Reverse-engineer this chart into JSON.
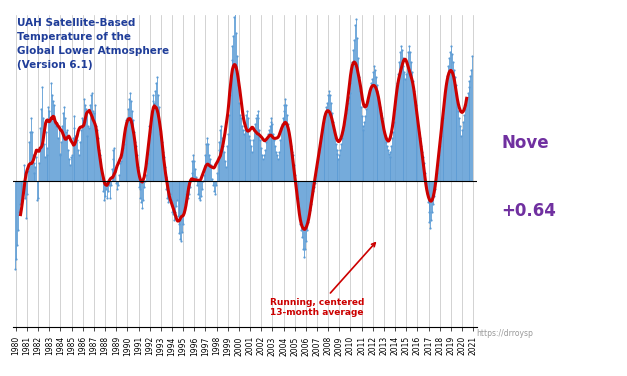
{
  "title_line1": "UAH Satellite-Based",
  "title_line2": "Temperature of the",
  "title_line3": "Global Lower Atmosphere",
  "title_line4": "(Version 6.1)",
  "title_color": "#1F3D99",
  "annotation_text": "Running, centered\n13-month average",
  "annotation_color": "#CC0000",
  "note_month": "Nove",
  "note_value": "+0.64",
  "note_color": "#7030A0",
  "url_text": "https://drroysp",
  "url_color": "#999999",
  "line_color": "#5B9BD5",
  "smooth_color": "#CC0000",
  "bg_color": "#FFFFFF",
  "grid_color": "#C0C0C0",
  "ylim": [
    -0.75,
    0.85
  ],
  "xlim_start": 1979.7,
  "xlim_end": 2021.3,
  "monthly_data": [
    -0.45,
    -0.4,
    -0.33,
    -0.25,
    -0.16,
    -0.12,
    -0.1,
    -0.14,
    -0.1,
    0.0,
    0.08,
    -0.09,
    -0.19,
    -0.07,
    0.05,
    0.2,
    0.25,
    0.32,
    0.25,
    0.13,
    0.04,
    0.09,
    0.07,
    0.12,
    -0.1,
    -0.09,
    0.09,
    0.27,
    0.37,
    0.48,
    0.32,
    0.19,
    0.12,
    0.25,
    0.13,
    0.17,
    0.38,
    0.36,
    0.31,
    0.5,
    0.44,
    0.41,
    0.39,
    0.29,
    0.28,
    0.28,
    0.22,
    0.27,
    0.14,
    0.13,
    0.2,
    0.28,
    0.35,
    0.38,
    0.32,
    0.25,
    0.26,
    0.16,
    0.11,
    0.08,
    0.12,
    0.13,
    0.22,
    0.27,
    0.33,
    0.23,
    0.23,
    0.21,
    0.16,
    0.13,
    0.2,
    0.26,
    0.32,
    0.31,
    0.42,
    0.39,
    0.37,
    0.36,
    0.23,
    0.28,
    0.27,
    0.39,
    0.44,
    0.45,
    0.36,
    0.35,
    0.39,
    0.28,
    0.26,
    0.22,
    0.16,
    0.11,
    0.13,
    0.06,
    0.01,
    -0.05,
    -0.1,
    -0.08,
    -0.04,
    -0.09,
    -0.05,
    -0.02,
    -0.09,
    -0.02,
    0.06,
    0.11,
    0.16,
    0.17,
    0.06,
    -0.01,
    -0.04,
    -0.02,
    0.03,
    0.09,
    0.1,
    0.13,
    0.17,
    0.19,
    0.26,
    0.31,
    0.3,
    0.32,
    0.37,
    0.42,
    0.45,
    0.41,
    0.36,
    0.31,
    0.25,
    0.2,
    0.18,
    0.13,
    0.07,
    -0.03,
    -0.04,
    -0.09,
    -0.11,
    -0.14,
    -0.1,
    -0.03,
    0.0,
    0.03,
    0.09,
    0.14,
    0.28,
    0.25,
    0.31,
    0.36,
    0.41,
    0.44,
    0.4,
    0.46,
    0.5,
    0.53,
    0.44,
    0.38,
    0.24,
    0.21,
    0.2,
    0.15,
    0.12,
    0.07,
    0.02,
    -0.04,
    -0.09,
    -0.11,
    -0.09,
    -0.07,
    -0.1,
    -0.16,
    -0.17,
    -0.2,
    -0.16,
    -0.13,
    -0.1,
    -0.18,
    -0.22,
    -0.27,
    -0.3,
    -0.31,
    -0.26,
    -0.22,
    -0.16,
    -0.12,
    -0.07,
    -0.05,
    -0.09,
    -0.07,
    -0.03,
    0.01,
    0.04,
    0.1,
    0.13,
    0.1,
    0.06,
    0.02,
    -0.02,
    -0.07,
    -0.09,
    -0.1,
    -0.08,
    -0.04,
    0.0,
    0.03,
    0.08,
    0.13,
    0.19,
    0.22,
    0.19,
    0.13,
    0.11,
    0.08,
    0.01,
    -0.02,
    -0.05,
    -0.07,
    -0.02,
    0.04,
    0.1,
    0.16,
    0.2,
    0.26,
    0.28,
    0.22,
    0.18,
    0.15,
    0.1,
    0.07,
    0.18,
    0.24,
    0.34,
    0.44,
    0.54,
    0.62,
    0.69,
    0.74,
    0.84,
    0.91,
    0.76,
    0.64,
    0.49,
    0.4,
    0.34,
    0.32,
    0.28,
    0.26,
    0.24,
    0.26,
    0.29,
    0.34,
    0.36,
    0.32,
    0.23,
    0.21,
    0.18,
    0.15,
    0.21,
    0.26,
    0.29,
    0.32,
    0.34,
    0.36,
    0.32,
    0.26,
    0.21,
    0.17,
    0.13,
    0.11,
    0.13,
    0.16,
    0.2,
    0.22,
    0.24,
    0.26,
    0.28,
    0.3,
    0.32,
    0.29,
    0.24,
    0.21,
    0.18,
    0.15,
    0.13,
    0.11,
    0.15,
    0.21,
    0.26,
    0.29,
    0.32,
    0.36,
    0.39,
    0.42,
    0.39,
    0.34,
    0.29,
    0.24,
    0.21,
    0.18,
    0.15,
    0.13,
    0.08,
    0.03,
    -0.02,
    -0.05,
    -0.09,
    -0.12,
    -0.17,
    -0.22,
    -0.25,
    -0.29,
    -0.35,
    -0.39,
    -0.35,
    -0.31,
    -0.25,
    -0.21,
    -0.17,
    -0.15,
    -0.12,
    -0.09,
    -0.07,
    -0.05,
    -0.03,
    -0.01,
    0.03,
    0.07,
    0.11,
    0.15,
    0.18,
    0.22,
    0.25,
    0.27,
    0.3,
    0.33,
    0.35,
    0.38,
    0.4,
    0.44,
    0.46,
    0.44,
    0.4,
    0.35,
    0.3,
    0.25,
    0.22,
    0.19,
    0.16,
    0.14,
    0.11,
    0.13,
    0.16,
    0.19,
    0.22,
    0.26,
    0.29,
    0.32,
    0.35,
    0.37,
    0.4,
    0.43,
    0.45,
    0.5,
    0.56,
    0.61,
    0.67,
    0.72,
    0.8,
    0.83,
    0.73,
    0.63,
    0.53,
    0.46,
    0.38,
    0.33,
    0.28,
    0.26,
    0.3,
    0.33,
    0.37,
    0.39,
    0.41,
    0.44,
    0.47,
    0.5,
    0.52,
    0.56,
    0.59,
    0.57,
    0.53,
    0.49,
    0.46,
    0.42,
    0.4,
    0.38,
    0.35,
    0.32,
    0.28,
    0.25,
    0.22,
    0.2,
    0.18,
    0.16,
    0.14,
    0.12,
    0.15,
    0.18,
    0.22,
    0.25,
    0.3,
    0.37,
    0.44,
    0.5,
    0.55,
    0.61,
    0.66,
    0.69,
    0.67,
    0.63,
    0.59,
    0.56,
    0.52,
    0.55,
    0.61,
    0.66,
    0.69,
    0.66,
    0.61,
    0.56,
    0.51,
    0.46,
    0.41,
    0.39,
    0.35,
    0.32,
    0.28,
    0.25,
    0.22,
    0.18,
    0.15,
    0.12,
    0.09,
    0.04,
    -0.01,
    -0.06,
    -0.11,
    -0.16,
    -0.21,
    -0.24,
    -0.2,
    -0.16,
    -0.12,
    -0.08,
    -0.04,
    0.0,
    0.04,
    0.08,
    0.13,
    0.18,
    0.23,
    0.28,
    0.32,
    0.37,
    0.41,
    0.46,
    0.5,
    0.54,
    0.59,
    0.63,
    0.66,
    0.69,
    0.65,
    0.61,
    0.57,
    0.53,
    0.49,
    0.44,
    0.4,
    0.36,
    0.32,
    0.28,
    0.23,
    0.26,
    0.3,
    0.34,
    0.37,
    0.39,
    0.42,
    0.45,
    0.48,
    0.51,
    0.54,
    0.57,
    0.64
  ],
  "start_year": 1979,
  "start_month": 12
}
